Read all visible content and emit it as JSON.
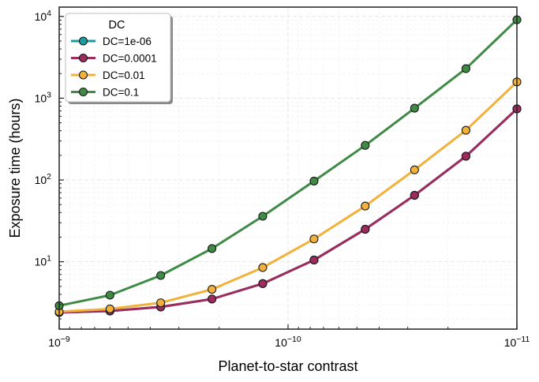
{
  "chart_data": {
    "type": "line",
    "xlabel": "Planet-to-star contrast",
    "ylabel": "Exposure time (hours)",
    "xscale": "log",
    "yscale": "log",
    "x_inverted": true,
    "xlim": [
      1e-09,
      1e-11
    ],
    "ylim": [
      1.5,
      13000
    ],
    "grid": true,
    "legend": {
      "title": "DC",
      "placement": "top-left"
    },
    "x": [
      1e-09,
      6e-10,
      3.6e-10,
      2.15e-10,
      1.29e-10,
      7.7e-11,
      4.6e-11,
      2.8e-11,
      1.67e-11,
      1e-11
    ],
    "x_ticks": [
      {
        "value": 1e-09,
        "base": "10",
        "exp": "−9"
      },
      {
        "value": 1e-10,
        "base": "10",
        "exp": "−10"
      },
      {
        "value": 1e-11,
        "base": "10",
        "exp": "−11"
      }
    ],
    "y_ticks": [
      {
        "value": 10,
        "base": "10",
        "exp": "1"
      },
      {
        "value": 100,
        "base": "10",
        "exp": "2"
      },
      {
        "value": 1000,
        "base": "10",
        "exp": "3"
      },
      {
        "value": 10000,
        "base": "10",
        "exp": "4"
      }
    ],
    "series": [
      {
        "name": "DC=1e-06",
        "color": "#1a9ba0",
        "values": [
          2.4,
          2.5,
          2.8,
          3.5,
          5.4,
          10.5,
          25,
          65,
          195,
          740
        ]
      },
      {
        "name": "DC=0.0001",
        "color": "#9e2a5e",
        "values": [
          2.4,
          2.5,
          2.8,
          3.5,
          5.4,
          10.5,
          25,
          65,
          195,
          740
        ]
      },
      {
        "name": "DC=0.01",
        "color": "#f2b13b",
        "values": [
          2.45,
          2.65,
          3.15,
          4.6,
          8.5,
          19,
          48,
          133,
          405,
          1580
        ]
      },
      {
        "name": "DC=0.1",
        "color": "#3f8a45",
        "values": [
          2.9,
          3.9,
          6.8,
          14.5,
          36,
          97,
          265,
          755,
          2300,
          9100
        ]
      }
    ]
  }
}
